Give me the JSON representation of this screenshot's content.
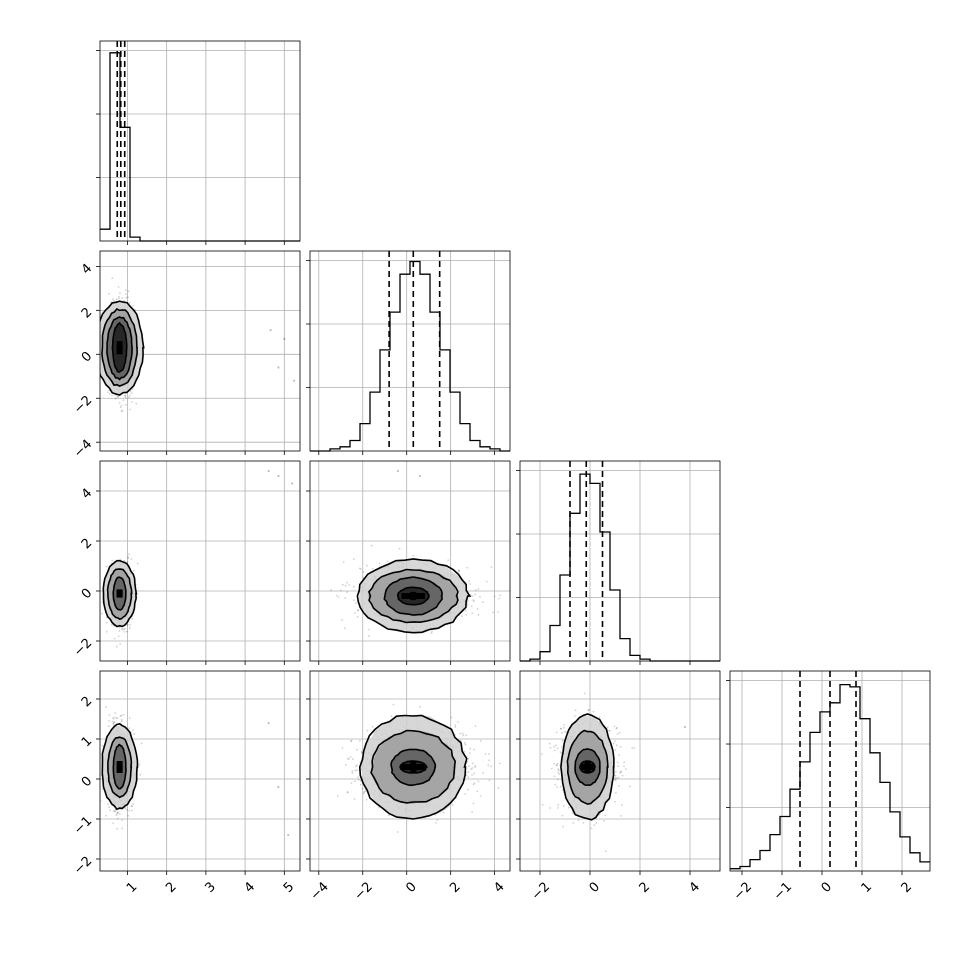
{
  "chart_data": {
    "type": "corner",
    "grid": true,
    "parameters": [
      {
        "index": 0,
        "range": [
          0.3,
          5.4
        ],
        "ticks": [
          1,
          2,
          3,
          4,
          5
        ],
        "tick_labels": [
          "1",
          "2",
          "3",
          "4",
          "5"
        ],
        "quantiles": [
          0.74,
          0.83,
          0.93
        ]
      },
      {
        "index": 1,
        "range": [
          -4.4,
          4.7
        ],
        "ticks": [
          -4,
          -2,
          0,
          2,
          4
        ],
        "tick_labels": [
          "−4",
          "−2",
          "0",
          "2",
          "4"
        ],
        "quantiles": [
          -0.8,
          0.3,
          1.5
        ]
      },
      {
        "index": 2,
        "range": [
          -2.8,
          5.2
        ],
        "ticks": [
          -2,
          0,
          2,
          4
        ],
        "tick_labels": [
          "−2",
          "0",
          "2",
          "4"
        ],
        "quantiles": [
          -0.8,
          -0.15,
          0.5
        ]
      },
      {
        "index": 3,
        "range": [
          -2.3,
          2.7
        ],
        "ticks": [
          -2,
          -1,
          0,
          1,
          2
        ],
        "tick_labels": [
          "−2",
          "−1",
          "0",
          "1",
          "2"
        ],
        "quantiles": [
          -0.55,
          0.2,
          0.85
        ]
      }
    ],
    "histograms": [
      {
        "param": 0,
        "bin_start": 0.3,
        "bin_width": 0.255,
        "counts": [
          3,
          48,
          29,
          1,
          0,
          0,
          0,
          0,
          0,
          0,
          0,
          0,
          0,
          0,
          0,
          0,
          0,
          0,
          0,
          0
        ],
        "ymax": 51
      },
      {
        "param": 1,
        "bin_start": -4.4,
        "bin_width": 0.455,
        "counts": [
          0,
          0,
          1,
          2,
          5,
          13,
          28,
          48,
          66,
          84,
          90,
          84,
          66,
          48,
          28,
          13,
          5,
          2,
          1,
          0
        ],
        "ymax": 95
      },
      {
        "param": 2,
        "bin_start": -2.8,
        "bin_width": 0.4,
        "counts": [
          0,
          1,
          5,
          19,
          46,
          79,
          100,
          95,
          69,
          38,
          12,
          3,
          1,
          0,
          0,
          0,
          0,
          0,
          0,
          0
        ],
        "ymax": 107
      },
      {
        "param": 3,
        "bin_start": -2.3,
        "bin_width": 0.25,
        "counts": [
          1,
          2,
          5,
          9,
          16,
          24,
          36,
          48,
          61,
          70,
          74,
          82,
          81,
          67,
          52,
          39,
          26,
          15,
          8,
          4
        ],
        "ymax": 88
      }
    ],
    "pairs": [
      {
        "x": 0,
        "y": 1,
        "center": [
          0.8,
          0.3
        ],
        "sigma": [
          0.15,
          1.0
        ],
        "contours": [
          {
            "level": 0.5,
            "rx": 0.18,
            "ry": 1.1
          },
          {
            "level": 1.0,
            "rx": 0.32,
            "ry": 1.4
          },
          {
            "level": 1.5,
            "rx": 0.45,
            "ry": 1.75
          },
          {
            "level": 2.0,
            "rx": 0.6,
            "ry": 2.1
          }
        ],
        "outliers": [
          [
            4.65,
            1.1
          ],
          [
            5.0,
            0.7
          ],
          [
            4.85,
            -0.6
          ],
          [
            5.25,
            -1.2
          ]
        ]
      },
      {
        "x": 0,
        "y": 2,
        "center": [
          0.8,
          -0.1
        ],
        "sigma": [
          0.15,
          0.55
        ],
        "contours": [
          {
            "level": 0.5,
            "rx": 0.16,
            "ry": 0.65
          },
          {
            "level": 1.0,
            "rx": 0.3,
            "ry": 1.0
          },
          {
            "level": 1.5,
            "rx": 0.42,
            "ry": 1.3
          }
        ],
        "outliers": [
          [
            4.6,
            4.8
          ],
          [
            4.85,
            4.6
          ],
          [
            5.2,
            4.3
          ]
        ]
      },
      {
        "x": 1,
        "y": 2,
        "center": [
          0.3,
          -0.2
        ],
        "sigma": [
          1.2,
          0.55
        ],
        "contours": [
          {
            "level": 0.5,
            "rx": 0.7,
            "ry": 0.35
          },
          {
            "level": 1.0,
            "rx": 1.3,
            "ry": 0.75
          },
          {
            "level": 1.5,
            "rx": 2.0,
            "ry": 1.05
          },
          {
            "level": 2.0,
            "rx": 2.5,
            "ry": 1.45
          }
        ],
        "outliers": [
          [
            0.6,
            4.6
          ],
          [
            -0.4,
            4.8
          ]
        ]
      },
      {
        "x": 0,
        "y": 3,
        "center": [
          0.8,
          0.3
        ],
        "sigma": [
          0.15,
          0.5
        ],
        "contours": [
          {
            "level": 0.5,
            "rx": 0.16,
            "ry": 0.55
          },
          {
            "level": 1.0,
            "rx": 0.3,
            "ry": 0.75
          },
          {
            "level": 1.5,
            "rx": 0.45,
            "ry": 1.05
          }
        ],
        "outliers": [
          [
            4.6,
            1.4
          ],
          [
            4.85,
            -0.2
          ],
          [
            5.1,
            -1.4
          ]
        ]
      },
      {
        "x": 1,
        "y": 3,
        "center": [
          0.3,
          0.3
        ],
        "sigma": [
          1.2,
          0.5
        ],
        "contours": [
          {
            "level": 0.5,
            "rx": 0.6,
            "ry": 0.15
          },
          {
            "level": 1.0,
            "rx": 1.0,
            "ry": 0.45
          },
          {
            "level": 1.5,
            "rx": 1.9,
            "ry": 0.9
          },
          {
            "level": 2.0,
            "rx": 2.4,
            "ry": 1.3
          }
        ],
        "outliers": []
      },
      {
        "x": 2,
        "y": 3,
        "center": [
          -0.1,
          0.3
        ],
        "sigma": [
          0.55,
          0.5
        ],
        "contours": [
          {
            "level": 0.5,
            "rx": 0.3,
            "ry": 0.15
          },
          {
            "level": 1.0,
            "rx": 0.5,
            "ry": 0.45
          },
          {
            "level": 1.5,
            "rx": 0.8,
            "ry": 0.9
          },
          {
            "level": 2.0,
            "rx": 1.05,
            "ry": 1.3
          }
        ],
        "outliers": [
          [
            3.8,
            1.3
          ]
        ]
      }
    ]
  }
}
